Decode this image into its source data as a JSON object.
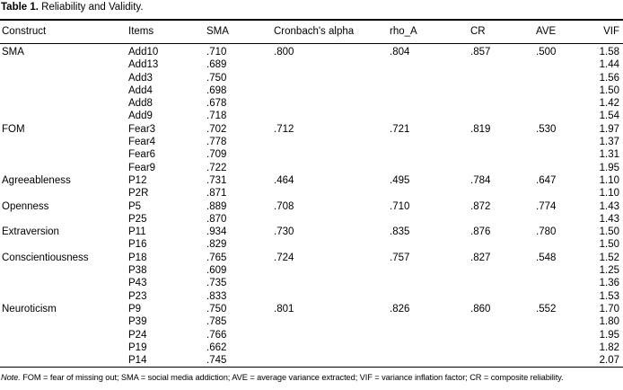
{
  "title": {
    "label": "Table 1.",
    "text": "Reliability and Validity."
  },
  "table": {
    "columns": {
      "construct": "Construct",
      "items": "Items",
      "sma": "SMA",
      "alpha": "Cronbach's alpha",
      "rho": "rho_A",
      "cr": "CR",
      "ave": "AVE",
      "vif": "VIF"
    },
    "rows": [
      {
        "construct": "SMA",
        "items": "Add10",
        "sma": ".710",
        "alpha": ".800",
        "rho": ".804",
        "cr": ".857",
        "ave": ".500",
        "vif": "1.58"
      },
      {
        "construct": "",
        "items": "Add13",
        "sma": ".689",
        "alpha": "",
        "rho": "",
        "cr": "",
        "ave": "",
        "vif": "1.44"
      },
      {
        "construct": "",
        "items": "Add3",
        "sma": ".750",
        "alpha": "",
        "rho": "",
        "cr": "",
        "ave": "",
        "vif": "1.56"
      },
      {
        "construct": "",
        "items": "Add4",
        "sma": ".698",
        "alpha": "",
        "rho": "",
        "cr": "",
        "ave": "",
        "vif": "1.50"
      },
      {
        "construct": "",
        "items": "Add8",
        "sma": ".678",
        "alpha": "",
        "rho": "",
        "cr": "",
        "ave": "",
        "vif": "1.42"
      },
      {
        "construct": "",
        "items": "Add9",
        "sma": ".718",
        "alpha": "",
        "rho": "",
        "cr": "",
        "ave": "",
        "vif": "1.54"
      },
      {
        "construct": "FOM",
        "items": "Fear3",
        "sma": ".702",
        "alpha": ".712",
        "rho": ".721",
        "cr": ".819",
        "ave": ".530",
        "vif": "1.97"
      },
      {
        "construct": "",
        "items": "Fear4",
        "sma": ".778",
        "alpha": "",
        "rho": "",
        "cr": "",
        "ave": "",
        "vif": "1.37"
      },
      {
        "construct": "",
        "items": "Fear6",
        "sma": ".709",
        "alpha": "",
        "rho": "",
        "cr": "",
        "ave": "",
        "vif": "1.31"
      },
      {
        "construct": "",
        "items": "Fear9",
        "sma": ".722",
        "alpha": "",
        "rho": "",
        "cr": "",
        "ave": "",
        "vif": "1.95"
      },
      {
        "construct": "Agreeableness",
        "items": "P12",
        "sma": ".731",
        "alpha": ".464",
        "rho": ".495",
        "cr": ".784",
        "ave": ".647",
        "vif": "1.10"
      },
      {
        "construct": "",
        "items": "P2R",
        "sma": ".871",
        "alpha": "",
        "rho": "",
        "cr": "",
        "ave": "",
        "vif": "1.10"
      },
      {
        "construct": "Openness",
        "items": "P5",
        "sma": ".889",
        "alpha": ".708",
        "rho": ".710",
        "cr": ".872",
        "ave": ".774",
        "vif": "1.43"
      },
      {
        "construct": "",
        "items": "P25",
        "sma": ".870",
        "alpha": "",
        "rho": "",
        "cr": "",
        "ave": "",
        "vif": "1.43"
      },
      {
        "construct": "Extraversion",
        "items": "P11",
        "sma": ".934",
        "alpha": ".730",
        "rho": ".835",
        "cr": ".876",
        "ave": ".780",
        "vif": "1.50"
      },
      {
        "construct": "",
        "items": "P16",
        "sma": ".829",
        "alpha": "",
        "rho": "",
        "cr": "",
        "ave": "",
        "vif": "1.50"
      },
      {
        "construct": "Conscientiousness",
        "items": "P18",
        "sma": ".765",
        "alpha": ".724",
        "rho": ".757",
        "cr": ".827",
        "ave": ".548",
        "vif": "1.52"
      },
      {
        "construct": "",
        "items": "P38",
        "sma": ".609",
        "alpha": "",
        "rho": "",
        "cr": "",
        "ave": "",
        "vif": "1.25"
      },
      {
        "construct": "",
        "items": "P43",
        "sma": ".735",
        "alpha": "",
        "rho": "",
        "cr": "",
        "ave": "",
        "vif": "1.36"
      },
      {
        "construct": "",
        "items": "P23",
        "sma": ".833",
        "alpha": "",
        "rho": "",
        "cr": "",
        "ave": "",
        "vif": "1.53"
      },
      {
        "construct": "Neuroticism",
        "items": "P9",
        "sma": ".750",
        "alpha": ".801",
        "rho": ".826",
        "cr": ".860",
        "ave": ".552",
        "vif": "1.70"
      },
      {
        "construct": "",
        "items": "P39",
        "sma": ".785",
        "alpha": "",
        "rho": "",
        "cr": "",
        "ave": "",
        "vif": "1.80"
      },
      {
        "construct": "",
        "items": "P24",
        "sma": ".766",
        "alpha": "",
        "rho": "",
        "cr": "",
        "ave": "",
        "vif": "1.95"
      },
      {
        "construct": "",
        "items": "P19",
        "sma": ".662",
        "alpha": "",
        "rho": "",
        "cr": "",
        "ave": "",
        "vif": "1.82"
      },
      {
        "construct": "",
        "items": "P14",
        "sma": ".745",
        "alpha": "",
        "rho": "",
        "cr": "",
        "ave": "",
        "vif": "2.07"
      }
    ]
  },
  "footnote": {
    "label": "Note.",
    "text": "FOM = fear of missing out; SMA = social media addiction; AVE = average variance extracted; VIF = variance inflation factor; CR = composite reliability."
  },
  "colors": {
    "text": "#000000",
    "background": "#ffffff",
    "rule": "#000000"
  }
}
